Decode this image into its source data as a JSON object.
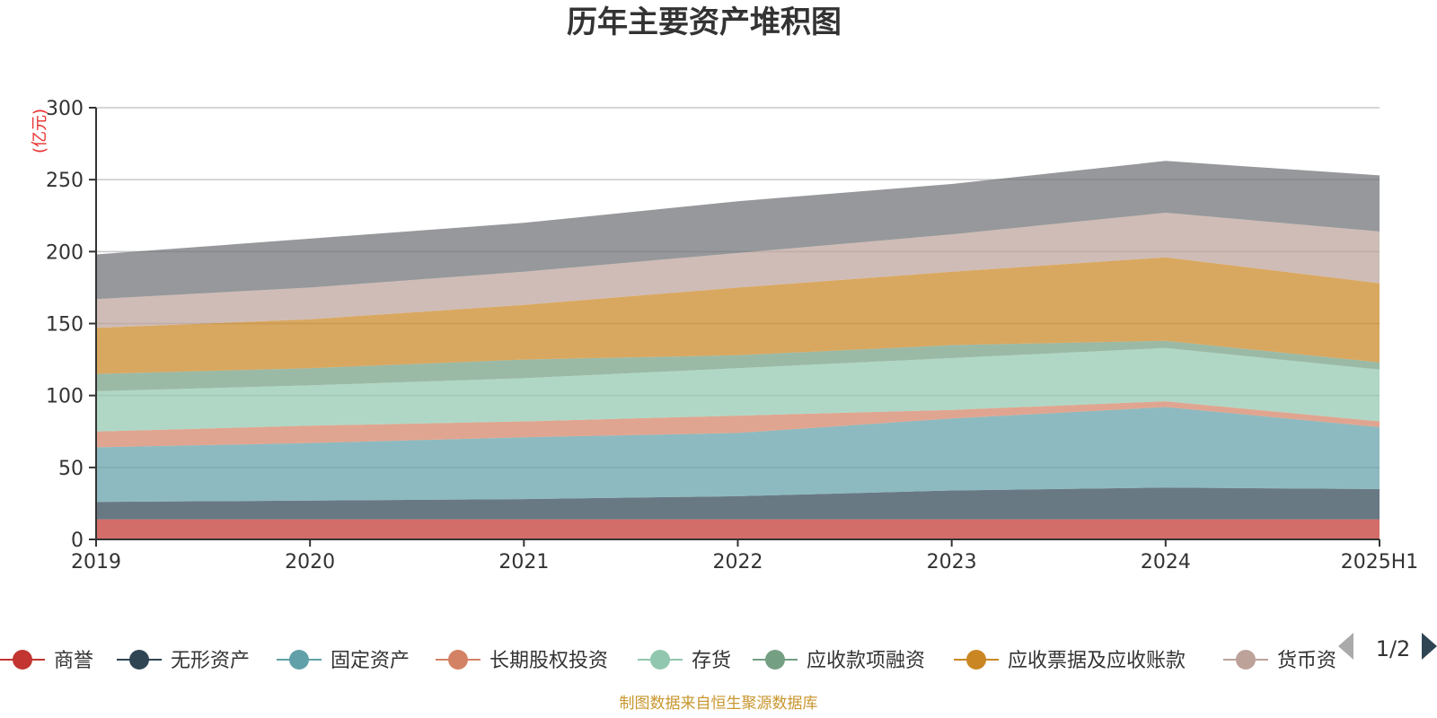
{
  "chart_data": {
    "type": "area",
    "stacked": true,
    "title": "历年主要资产堆积图",
    "unit_label": "(亿元)",
    "categories": [
      "2019",
      "2020",
      "2021",
      "2022",
      "2023",
      "2024",
      "2025H1"
    ],
    "ylim": [
      0,
      300
    ],
    "yticks": [
      0,
      50,
      100,
      150,
      200,
      250,
      300
    ],
    "grid": true,
    "legend_position": "bottom",
    "series": [
      {
        "name": "商誉",
        "color": "#c23531",
        "values": [
          14,
          14,
          14,
          14,
          14,
          14,
          14
        ]
      },
      {
        "name": "无形资产",
        "color": "#2f4554",
        "values": [
          12,
          13,
          14,
          16,
          20,
          22,
          21
        ]
      },
      {
        "name": "固定资产",
        "color": "#61a0a8",
        "values": [
          38,
          40,
          43,
          44,
          50,
          56,
          43
        ]
      },
      {
        "name": "长期股权投资",
        "color": "#d48265",
        "values": [
          11,
          12,
          11,
          12,
          6,
          4,
          4
        ]
      },
      {
        "name": "存货",
        "color": "#91c7ae",
        "values": [
          28,
          28,
          30,
          33,
          36,
          37,
          36
        ]
      },
      {
        "name": "应收款项融资",
        "color": "#749f83",
        "values": [
          12,
          12,
          13,
          9,
          9,
          5,
          5
        ]
      },
      {
        "name": "应收票据及应收账款",
        "color": "#ca8622",
        "values": [
          32,
          34,
          38,
          47,
          51,
          58,
          55
        ]
      },
      {
        "name": "货币资金",
        "color": "#bda29a",
        "values": [
          20,
          22,
          23,
          24,
          26,
          31,
          36
        ]
      },
      {
        "name": "",
        "color": "#6e7074",
        "values": [
          31,
          34,
          34,
          36,
          35,
          36,
          39
        ]
      }
    ]
  },
  "legend": {
    "visible_labels": [
      "商誉",
      "无形资产",
      "固定资产",
      "长期股权投资",
      "存货",
      "应收款项融资",
      "应收票据及应收账款",
      "货币资"
    ],
    "page": "1/2"
  },
  "source_note": "制图数据来自恒生聚源数据库"
}
